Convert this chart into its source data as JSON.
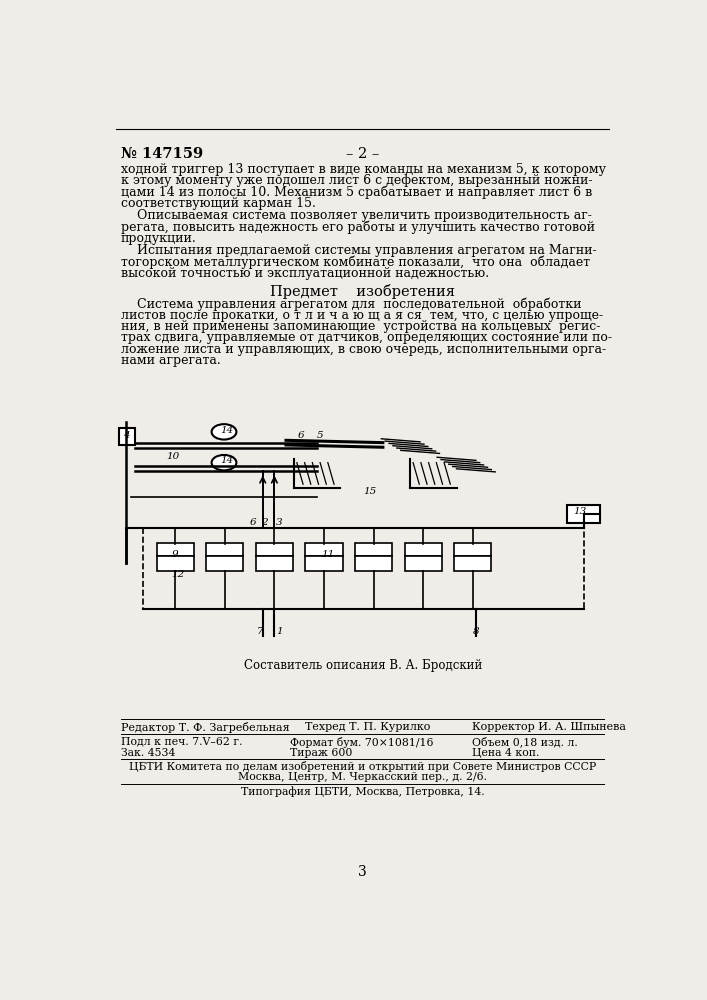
{
  "patent_number": "№ 147159",
  "page_dash": "– 2 –",
  "bg_color": "#f0ede8",
  "text_color": "#1a1a1a",
  "para1_lines": [
    "ходной триггер 13 поступает в виде команды на механизм 5, к которому",
    "к этому моменту уже подошел лист 6 с дефектом, вырезанный ножни-",
    "цами 14 из полосы 10. Механизм 5 срабатывает и направляет лист 6 в",
    "соответствующий карман 15."
  ],
  "para2_lines": [
    "    Описываемая система позволяет увеличить производительность аг-",
    "регата, повысить надежность его работы и улучшить качество готовой",
    "продукции."
  ],
  "para3_lines": [
    "    Испытания предлагаемой системы управления агрегатом на Магни-",
    "тогорском металлургическом комбинате показали,  что она  обладает",
    "высокой точностью и эксплуатационной надежностью."
  ],
  "predmet_title": "Предмет    изобретения",
  "predmet_lines": [
    "    Система управления агрегатом для  последовательной  обработки",
    "листов после прокатки, о т л и ч а ю щ а я ся  тем, что, с целью упроще-",
    "ния, в ней применены запоминающие  устройства на кольцевых  регис-",
    "трах сдвига, управляемые от датчиков, определяющих состояние или по-",
    "ложение листа и управляющих, в свою очередь, исполнительными орга-",
    "нами агрегата."
  ],
  "composer_text": "Составитель описания В. А. Бродский",
  "footer_line1_left": "Редактор Т. Ф. Загребельная",
  "footer_line1_mid": "Техред Т. П. Курилко",
  "footer_line1_right": "Корректор И. А. Шпынева",
  "footer_line2_left": "Подл к печ. 7.V–62 г.",
  "footer_line2_mid": "Формат бум. 70×1081/16",
  "footer_line2_right": "Объем 0,18 изд. л.",
  "footer_line3_left": "Зак. 4534",
  "footer_line3_mid": "Тираж 600",
  "footer_line3_right": "Цена 4 коп.",
  "footer_line4": "ЦБТИ Комитета по делам изобретений и открытий при Совете Министров СССР",
  "footer_line5": "Москва, Центр, М. Черкасский пер., д. 2/6.",
  "footer_line6": "Типография ЦБТИ, Москва, Петровка, 14.",
  "page_number": "3"
}
